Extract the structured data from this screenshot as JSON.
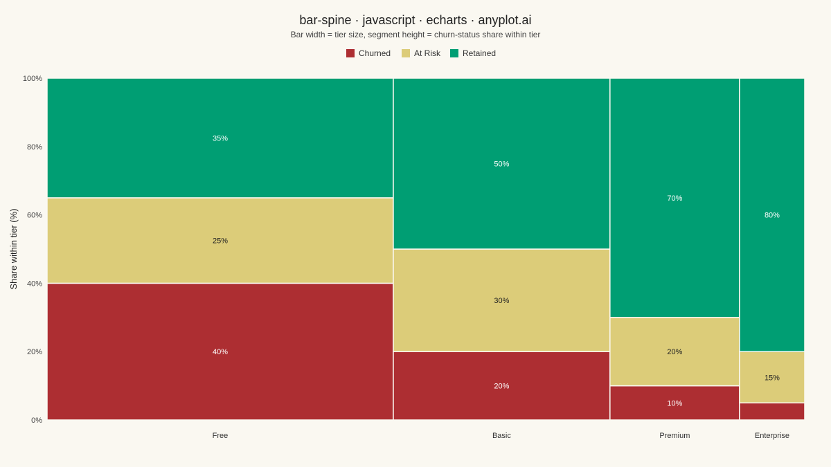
{
  "chart_data": {
    "type": "bar-spine",
    "title": "bar-spine · javascript · echarts · anyplot.ai",
    "subtitle": "Bar width = tier size, segment height = churn-status share within tier",
    "xlabel": "",
    "ylabel": "Share within tier (%)",
    "ylim": [
      0,
      100
    ],
    "yticks": [
      "0%",
      "20%",
      "40%",
      "60%",
      "80%",
      "100%"
    ],
    "ytick_values": [
      0,
      20,
      40,
      60,
      80,
      100
    ],
    "legend_position": "top-center",
    "grid": false,
    "categories": [
      "Free",
      "Basic",
      "Premium",
      "Enterprise"
    ],
    "tier_share": [
      45.7,
      28.6,
      17.1,
      8.6
    ],
    "series": [
      {
        "name": "Churned",
        "color": "#ad2e32",
        "label_color": "#ffffff",
        "values": [
          40,
          20,
          10,
          5
        ],
        "labels": [
          "40%",
          "20%",
          "10%",
          ""
        ]
      },
      {
        "name": "At Risk",
        "color": "#dccc79",
        "label_color": "#222222",
        "values": [
          25,
          30,
          20,
          15
        ],
        "labels": [
          "25%",
          "30%",
          "20%",
          "15%"
        ]
      },
      {
        "name": "Retained",
        "color": "#009e73",
        "label_color": "#ffffff",
        "values": [
          35,
          50,
          70,
          80
        ],
        "labels": [
          "35%",
          "50%",
          "70%",
          "80%"
        ]
      }
    ]
  }
}
